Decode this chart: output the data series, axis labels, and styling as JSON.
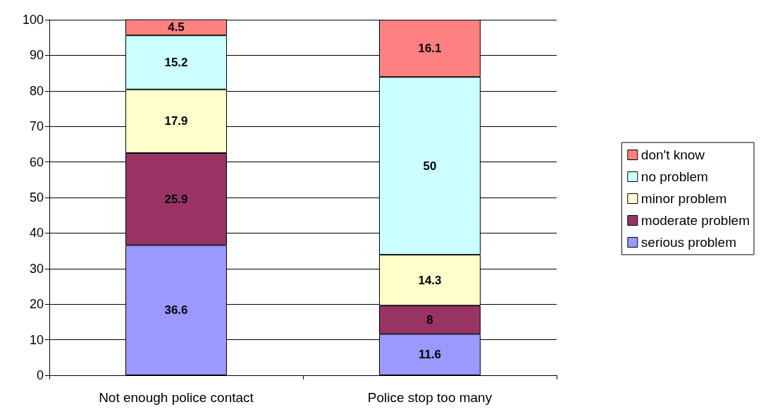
{
  "chart_data": {
    "type": "bar",
    "stacked": true,
    "categories": [
      "Not enough police contact",
      "Police stop too many"
    ],
    "series": [
      {
        "name": "serious problem",
        "color": "#9999ff",
        "values": [
          36.6,
          11.6
        ]
      },
      {
        "name": "moderate problem",
        "color": "#993366",
        "values": [
          25.9,
          8
        ]
      },
      {
        "name": "minor problem",
        "color": "#ffffcc",
        "values": [
          17.9,
          14.3
        ]
      },
      {
        "name": "no problem",
        "color": "#ccffff",
        "values": [
          15.2,
          50
        ]
      },
      {
        "name": "don't know",
        "color": "#ff8080",
        "values": [
          4.5,
          16.1
        ]
      }
    ],
    "ylim": [
      0,
      100
    ],
    "yticks": [
      0,
      10,
      20,
      30,
      40,
      50,
      60,
      70,
      80,
      90,
      100
    ],
    "grid": "y",
    "legend": "right",
    "data_labels": true
  }
}
